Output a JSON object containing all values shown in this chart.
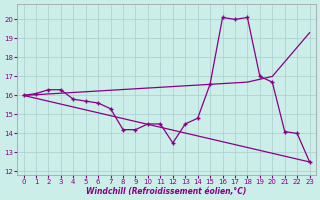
{
  "bg_color": "#cceee8",
  "line_color": "#880088",
  "xlabel": "Windchill (Refroidissement éolien,°C)",
  "xlim": [
    -0.5,
    23.5
  ],
  "ylim": [
    11.8,
    20.8
  ],
  "yticks": [
    12,
    13,
    14,
    15,
    16,
    17,
    18,
    19,
    20
  ],
  "xticks": [
    0,
    1,
    2,
    3,
    4,
    5,
    6,
    7,
    8,
    9,
    10,
    11,
    12,
    13,
    14,
    15,
    16,
    17,
    18,
    19,
    20,
    21,
    22,
    23
  ],
  "line1_x": [
    0,
    1,
    2,
    3,
    4,
    5,
    6,
    7,
    8,
    9,
    10,
    11,
    12,
    13,
    14,
    15,
    16,
    17,
    18,
    19,
    20,
    21,
    22,
    23
  ],
  "line1_y": [
    16.0,
    16.1,
    16.3,
    16.3,
    15.8,
    15.7,
    15.6,
    15.3,
    14.2,
    14.2,
    14.5,
    14.5,
    13.5,
    14.5,
    14.8,
    16.6,
    20.1,
    20.0,
    20.1,
    17.0,
    16.7,
    14.1,
    14.0,
    12.5
  ],
  "line2_x": [
    0,
    23
  ],
  "line2_y": [
    16.0,
    12.5
  ],
  "line3_x": [
    0,
    18,
    20,
    23
  ],
  "line3_y": [
    16.0,
    16.7,
    17.0,
    19.3
  ]
}
